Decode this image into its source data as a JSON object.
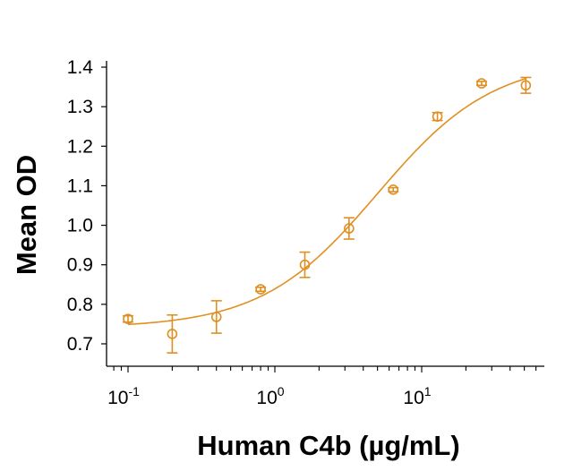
{
  "chart_data": {
    "type": "scatter",
    "title": "",
    "xlabel": "Human C4b (µg/mL)",
    "ylabel": "Mean OD",
    "xscale": "log",
    "xlim": [
      0.075,
      65
    ],
    "ylim": [
      0.645,
      1.42
    ],
    "xticks": [
      {
        "value": 0.1,
        "base": "10",
        "exp": "-1"
      },
      {
        "value": 1,
        "base": "10",
        "exp": "0"
      },
      {
        "value": 10,
        "base": "10",
        "exp": "1"
      }
    ],
    "yticks": [
      "0.7",
      "0.8",
      "0.9",
      "1.0",
      "1.1",
      "1.2",
      "1.3",
      "1.4"
    ],
    "grid": false,
    "color": "#E08F22",
    "marker": "open-circle",
    "points": [
      {
        "x": 0.1,
        "y": 0.763,
        "err": 0.008
      },
      {
        "x": 0.2,
        "y": 0.725,
        "err": 0.048
      },
      {
        "x": 0.4,
        "y": 0.768,
        "err": 0.041
      },
      {
        "x": 0.8,
        "y": 0.838,
        "err": 0.005
      },
      {
        "x": 1.6,
        "y": 0.9,
        "err": 0.032
      },
      {
        "x": 3.2,
        "y": 0.992,
        "err": 0.027
      },
      {
        "x": 6.4,
        "y": 1.09,
        "err": 0.005
      },
      {
        "x": 12.8,
        "y": 1.275,
        "err": 0.01
      },
      {
        "x": 25.6,
        "y": 1.359,
        "err": 0.005
      },
      {
        "x": 51.2,
        "y": 1.354,
        "err": 0.02
      }
    ],
    "fit": {
      "model": "4PL",
      "bottom": 0.74,
      "top": 1.42,
      "ec50": 5.0,
      "hill": 1.1
    }
  }
}
